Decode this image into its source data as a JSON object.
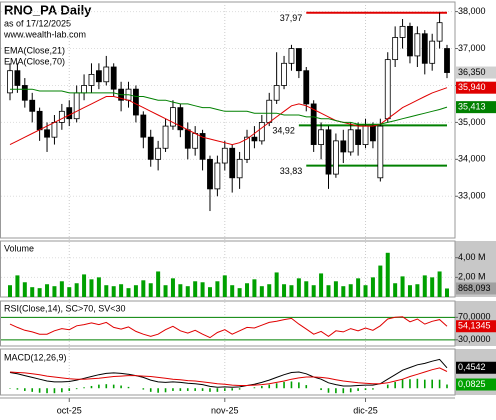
{
  "chart_data": [
    {
      "type": "candlestick",
      "title": "RNO_PA Daily",
      "subtitle": "as of 17/12/2025",
      "source": "www.wealth-lab.com",
      "categories": [
        null,
        null,
        null,
        null,
        null,
        null,
        null,
        null,
        "oct-25",
        null,
        null,
        null,
        null,
        null,
        null,
        null,
        null,
        null,
        null,
        null,
        null,
        null,
        null,
        null,
        null,
        null,
        null,
        null,
        null,
        "nov-25",
        null,
        null,
        null,
        null,
        null,
        null,
        null,
        null,
        null,
        null,
        null,
        null,
        null,
        null,
        null,
        null,
        null,
        null,
        "dic-25",
        null,
        null,
        null,
        null,
        null,
        null,
        null,
        null,
        null,
        null,
        null
      ],
      "open": [
        35.8,
        36.4,
        36.0,
        35.6,
        35.3,
        34.8,
        34.6,
        35.0,
        35.4,
        35.1,
        35.8,
        36.0,
        36.4,
        36.1,
        36.5,
        35.9,
        35.6,
        35.9,
        35.2,
        34.6,
        34.0,
        34.3,
        34.9,
        35.4,
        34.8,
        34.3,
        34.7,
        34.0,
        33.2,
        33.9,
        34.3,
        33.5,
        34.0,
        34.6,
        34.5,
        35.0,
        35.6,
        36.0,
        36.6,
        37.0,
        36.4,
        35.5,
        34.4,
        34.8,
        33.6,
        34.5,
        34.2,
        34.8,
        34.4,
        34.9,
        33.5,
        35.1,
        36.7,
        37.3,
        37.6,
        36.8,
        37.4,
        36.6,
        37.2,
        37.0
      ],
      "high": [
        36.6,
        36.6,
        36.2,
        35.8,
        35.4,
        35.0,
        35.2,
        35.5,
        35.6,
        36.0,
        36.3,
        36.6,
        36.6,
        36.8,
        36.6,
        36.1,
        36.1,
        36.0,
        35.3,
        34.8,
        34.5,
        35.1,
        35.6,
        35.5,
        35.0,
        34.9,
        34.8,
        34.1,
        34.1,
        34.5,
        34.4,
        34.2,
        34.8,
        34.9,
        35.2,
        35.8,
        36.9,
        36.8,
        37.1,
        37.0,
        36.5,
        35.6,
        35.0,
        34.9,
        34.7,
        34.8,
        35.0,
        35.0,
        35.1,
        35.0,
        35.1,
        36.9,
        37.6,
        37.8,
        37.7,
        37.6,
        37.5,
        37.4,
        37.97,
        37.1
      ],
      "low": [
        35.6,
        35.8,
        35.4,
        35.0,
        34.5,
        34.2,
        34.4,
        34.8,
        34.9,
        35.0,
        35.6,
        35.8,
        35.9,
        36.0,
        35.7,
        35.3,
        35.4,
        35.0,
        34.3,
        33.8,
        33.7,
        34.2,
        34.8,
        34.6,
        34.0,
        34.1,
        33.7,
        32.6,
        33.0,
        33.7,
        33.1,
        33.2,
        33.9,
        34.3,
        34.4,
        34.9,
        35.5,
        35.9,
        36.4,
        36.2,
        35.3,
        34.2,
        34.0,
        33.2,
        33.5,
        33.9,
        34.1,
        34.1,
        34.3,
        34.3,
        33.4,
        35.0,
        36.5,
        37.0,
        36.6,
        36.5,
        36.3,
        36.4,
        37.0,
        36.2
      ],
      "close": [
        36.4,
        36.0,
        35.6,
        35.3,
        34.8,
        34.6,
        35.0,
        35.3,
        35.1,
        35.8,
        36.0,
        36.3,
        36.1,
        36.5,
        35.9,
        35.6,
        35.9,
        35.2,
        34.6,
        34.0,
        34.3,
        34.9,
        35.4,
        34.8,
        34.3,
        34.7,
        34.0,
        33.2,
        33.9,
        34.3,
        33.5,
        34.0,
        34.6,
        34.5,
        35.0,
        35.6,
        36.0,
        36.6,
        37.0,
        36.4,
        35.5,
        34.4,
        34.8,
        33.6,
        34.5,
        34.2,
        34.8,
        34.4,
        34.9,
        34.5,
        34.9,
        36.7,
        37.3,
        37.6,
        36.8,
        37.4,
        36.6,
        37.2,
        37.7,
        36.35
      ],
      "close_label": "36,350",
      "ylim": [
        31.87,
        38.26
      ],
      "yticks": [
        {
          "value": 33,
          "label": "33,000"
        },
        {
          "value": 34,
          "label": "34,000"
        },
        {
          "value": 35,
          "label": "35,000"
        },
        {
          "value": 36,
          "label": "36,000"
        },
        {
          "value": 37,
          "label": "37,000"
        },
        {
          "value": 38,
          "label": "38,000"
        }
      ],
      "series": [
        {
          "name": "EMA(Close,21)",
          "color": "#e00000",
          "last_label": "35,940",
          "values": [
            34.4,
            34.5,
            34.6,
            34.7,
            34.8,
            34.9,
            35.0,
            35.1,
            35.2,
            35.3,
            35.4,
            35.5,
            35.6,
            35.7,
            35.7,
            35.65,
            35.6,
            35.5,
            35.4,
            35.3,
            35.2,
            35.1,
            35.0,
            34.9,
            34.8,
            34.7,
            34.6,
            34.55,
            34.5,
            34.45,
            34.4,
            34.45,
            34.55,
            34.7,
            34.85,
            35.0,
            35.15,
            35.3,
            35.45,
            35.5,
            35.45,
            35.35,
            35.25,
            35.15,
            35.05,
            35.0,
            34.95,
            34.9,
            34.9,
            34.9,
            34.95,
            35.1,
            35.25,
            35.4,
            35.5,
            35.6,
            35.7,
            35.8,
            35.87,
            35.94
          ]
        },
        {
          "name": "EMA(Close,70)",
          "color": "#008000",
          "last_label": "35,413",
          "values": [
            35.9,
            35.9,
            35.9,
            35.9,
            35.85,
            35.85,
            35.85,
            35.85,
            35.8,
            35.8,
            35.8,
            35.8,
            35.8,
            35.8,
            35.8,
            35.75,
            35.75,
            35.7,
            35.7,
            35.65,
            35.6,
            35.6,
            35.55,
            35.5,
            35.5,
            35.45,
            35.4,
            35.4,
            35.35,
            35.3,
            35.3,
            35.3,
            35.3,
            35.25,
            35.25,
            35.25,
            35.25,
            35.2,
            35.2,
            35.2,
            35.15,
            35.15,
            35.1,
            35.1,
            35.05,
            35.0,
            35.0,
            34.95,
            34.95,
            34.95,
            34.95,
            35.0,
            35.05,
            35.1,
            35.15,
            35.2,
            35.25,
            35.3,
            35.35,
            35.413
          ]
        }
      ],
      "levels": [
        {
          "value": 37.97,
          "label": "37,97",
          "color": "#e00000",
          "start": 40
        },
        {
          "value": 34.92,
          "label": "34,92",
          "color": "#008000",
          "start": 39
        },
        {
          "value": 33.83,
          "label": "33,83",
          "color": "#008000",
          "start": 40
        }
      ]
    },
    {
      "type": "bar",
      "title": "Volume",
      "color": "#00a000",
      "last_label": "868,093",
      "values": [
        1.2,
        2.2,
        1.5,
        1.0,
        0.9,
        1.3,
        1.1,
        1.6,
        1.0,
        1.4,
        2.3,
        1.8,
        2.0,
        1.2,
        1.1,
        1.3,
        0.9,
        1.2,
        1.7,
        1.4,
        2.6,
        1.2,
        1.9,
        1.3,
        1.1,
        1.6,
        1.5,
        1.0,
        1.6,
        2.2,
        1.2,
        0.9,
        1.4,
        1.8,
        1.1,
        1.3,
        2.5,
        1.3,
        1.2,
        1.9,
        1.6,
        1.2,
        2.4,
        1.2,
        1.6,
        1.1,
        1.3,
        1.9,
        1.2,
        2.0,
        3.2,
        4.5,
        1.4,
        2.1,
        1.2,
        1.3,
        2.2,
        2.0,
        2.6,
        0.868093
      ],
      "ylim": [
        0,
        5.7
      ],
      "yticks": [
        {
          "value": 2,
          "label": "2,00 M"
        },
        {
          "value": 4,
          "label": "4,00 M"
        }
      ]
    },
    {
      "type": "line",
      "title": "RSI(Close,14), SC>70, SV<30",
      "color": "#e00000",
      "last_label": "54,1345",
      "values": [
        58,
        52,
        47,
        44,
        40,
        40,
        46,
        50,
        48,
        55,
        57,
        60,
        57,
        61,
        52,
        49,
        53,
        45,
        40,
        36,
        40,
        48,
        54,
        46,
        42,
        47,
        40,
        34,
        43,
        48,
        40,
        46,
        52,
        51,
        56,
        61,
        63,
        66,
        68,
        58,
        49,
        40,
        45,
        36,
        46,
        44,
        50,
        46,
        51,
        47,
        55,
        67,
        70,
        71,
        62,
        67,
        58,
        63,
        66,
        54.1345
      ],
      "ylim": [
        19,
        99
      ],
      "yticks": [
        {
          "value": 30,
          "label": "30,0000"
        },
        {
          "value": 70,
          "label": "70,0000"
        }
      ]
    },
    {
      "type": "macd",
      "title": "MACD(12,26,9)",
      "series": [
        {
          "color": "#000000",
          "last_label": "0,4542",
          "values": [
            0.35,
            0.32,
            0.28,
            0.24,
            0.2,
            0.16,
            0.14,
            0.14,
            0.15,
            0.18,
            0.22,
            0.26,
            0.3,
            0.33,
            0.34,
            0.33,
            0.31,
            0.28,
            0.24,
            0.18,
            0.14,
            0.13,
            0.14,
            0.13,
            0.11,
            0.1,
            0.08,
            0.04,
            0.02,
            0.03,
            0.02,
            0.03,
            0.06,
            0.09,
            0.13,
            0.18,
            0.24,
            0.3,
            0.35,
            0.36,
            0.32,
            0.25,
            0.2,
            0.12,
            0.08,
            0.05,
            0.05,
            0.06,
            0.07,
            0.07,
            0.1,
            0.2,
            0.3,
            0.4,
            0.46,
            0.52,
            0.55,
            0.6,
            0.64,
            0.4542
          ]
        },
        {
          "color": "#e00000",
          "values": [
            0.36,
            0.35,
            0.34,
            0.32,
            0.3,
            0.27,
            0.25,
            0.23,
            0.21,
            0.2,
            0.2,
            0.21,
            0.22,
            0.24,
            0.26,
            0.27,
            0.28,
            0.28,
            0.27,
            0.26,
            0.24,
            0.22,
            0.2,
            0.19,
            0.17,
            0.16,
            0.14,
            0.12,
            0.1,
            0.09,
            0.07,
            0.06,
            0.06,
            0.07,
            0.08,
            0.1,
            0.13,
            0.16,
            0.2,
            0.23,
            0.25,
            0.25,
            0.24,
            0.22,
            0.19,
            0.16,
            0.14,
            0.12,
            0.11,
            0.1,
            0.1,
            0.12,
            0.16,
            0.2,
            0.26,
            0.31,
            0.36,
            0.41,
            0.45,
            0.3717
          ]
        }
      ],
      "histogram": {
        "color": "#00a000",
        "last_label": "0,0825",
        "values": [
          -0.01,
          -0.03,
          -0.06,
          -0.08,
          -0.1,
          -0.11,
          -0.11,
          -0.09,
          -0.06,
          -0.02,
          0.02,
          0.05,
          0.08,
          0.09,
          0.08,
          0.06,
          0.03,
          0,
          -0.03,
          -0.08,
          -0.1,
          -0.09,
          -0.06,
          -0.06,
          -0.06,
          -0.06,
          -0.06,
          -0.08,
          -0.08,
          -0.06,
          -0.05,
          -0.03,
          0,
          0.02,
          0.05,
          0.08,
          0.11,
          0.14,
          0.15,
          0.13,
          0.07,
          0,
          -0.04,
          -0.1,
          -0.11,
          -0.11,
          -0.09,
          -0.06,
          -0.04,
          -0.03,
          0,
          0.08,
          0.14,
          0.2,
          0.2,
          0.21,
          0.19,
          0.19,
          0.19,
          0.0825
        ]
      },
      "ylim": [
        -0.15,
        0.87
      ]
    }
  ]
}
